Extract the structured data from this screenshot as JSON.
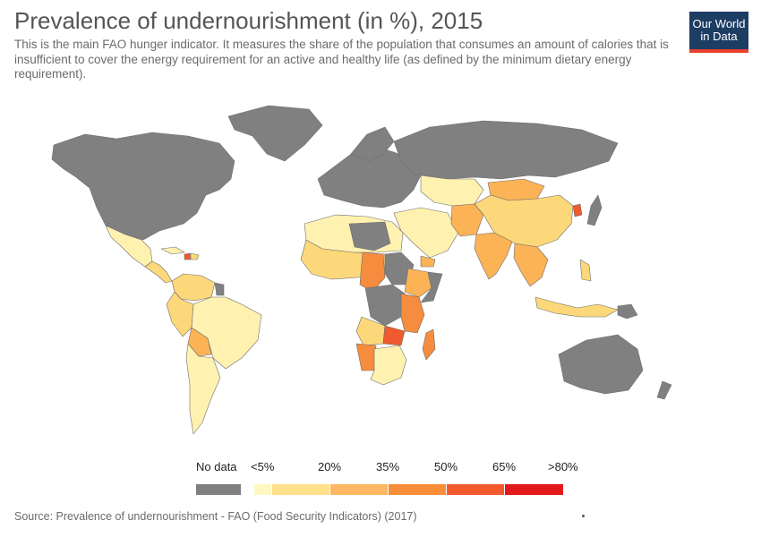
{
  "header": {
    "title": "Prevalence of undernourishment (in %), 2015",
    "subtitle": "This is the main FAO hunger indicator. It measures the share of the population that consumes an amount of calories that is insufficient to cover the energy requirement for an active and healthy life (as defined by the minimum dietary energy requirement)."
  },
  "logo": {
    "line1": "Our World",
    "line2": "in Data"
  },
  "legend": {
    "no_data_label": "No data",
    "no_data_color": "#808080",
    "ticks": [
      "<5%",
      "20%",
      "35%",
      "50%",
      "65%",
      ">80%"
    ],
    "bins": [
      {
        "range": "<5%",
        "color": "#fff7c4"
      },
      {
        "range": "5-20%",
        "color": "#fee08b"
      },
      {
        "range": "20-35%",
        "color": "#fdb863"
      },
      {
        "range": "35-50%",
        "color": "#f98e3a"
      },
      {
        "range": "50-65%",
        "color": "#f25a2d"
      },
      {
        "range": "65-80%",
        "color": "#e31a1c"
      }
    ]
  },
  "colors": {
    "no_data": "#808080",
    "low": "#fff2b0",
    "mid_low": "#fdd87a",
    "mid": "#fbb356",
    "high": "#f68c3e",
    "very_high": "#ef5a2e",
    "ocean": "#ffffff",
    "border": "#6e6e6e"
  },
  "source": "Source: Prevalence of undernourishment - FAO (Food Security Indicators) (2017)"
}
